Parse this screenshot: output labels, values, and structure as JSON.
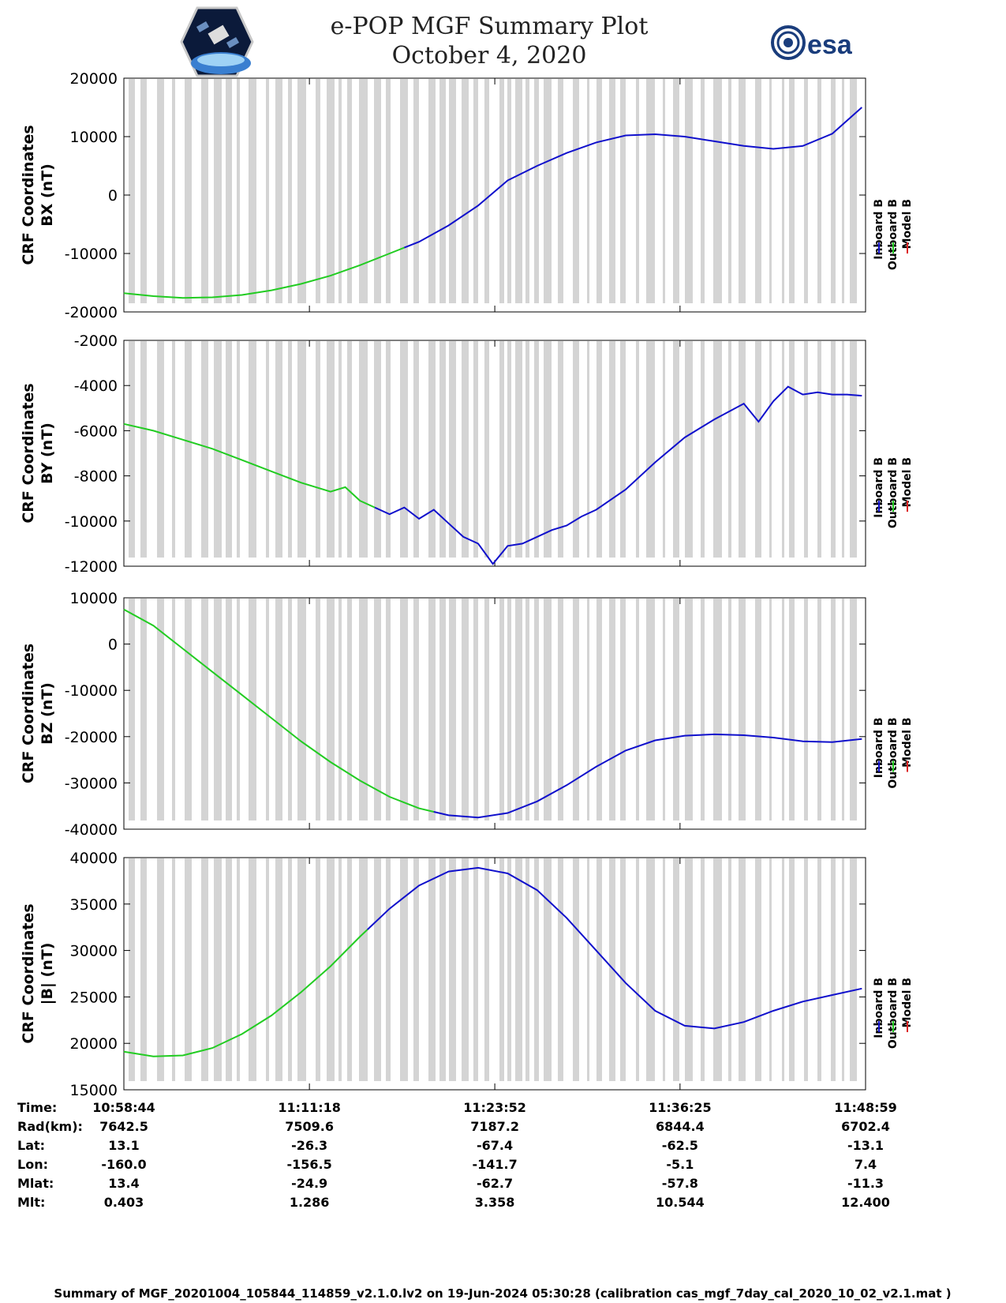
{
  "title": {
    "line1": "e-POP MGF Summary Plot",
    "line2": "October 4, 2020"
  },
  "logos": {
    "left": "cassiope-mission-logo",
    "right_text": "esa"
  },
  "colors": {
    "inboard": "#1010cc",
    "outboard": "#22cc22",
    "model": "#dd2222",
    "coverage": "#d4d4d4",
    "axis": "#000000"
  },
  "legend": [
    {
      "label": "Inboard B",
      "color": "#1010cc"
    },
    {
      "label": "Outboard B",
      "color": "#22cc22"
    },
    {
      "label": "Model B",
      "color": "#dd2222"
    }
  ],
  "chart_data": [
    {
      "type": "line",
      "ylabel_line1": "CRF Coordinates",
      "ylabel_line2": "BX (nT)",
      "ylim": [
        -20000,
        20000
      ],
      "yticks": [
        "20000",
        "10000",
        "0",
        "-10000",
        "-20000"
      ],
      "ytick_values": [
        20000,
        10000,
        0,
        -10000,
        -20000
      ],
      "x_minutes": [
        0,
        2,
        4,
        6,
        8,
        10,
        12,
        14,
        16,
        18,
        20,
        22,
        24,
        26,
        28,
        30,
        32,
        34,
        36,
        38,
        40,
        42,
        44,
        46,
        48,
        50
      ],
      "values": [
        -16800,
        -17300,
        -17600,
        -17500,
        -17100,
        -16300,
        -15200,
        -13800,
        -12000,
        -10000,
        -8000,
        -5200,
        -1800,
        2500,
        5000,
        7200,
        9000,
        10200,
        10400,
        10000,
        9200,
        8400,
        7900,
        8400,
        10500,
        15000
      ],
      "switch_minute": 19
    },
    {
      "type": "line",
      "ylabel_line1": "CRF Coordinates",
      "ylabel_line2": "BY (nT)",
      "ylim": [
        -12000,
        -2000
      ],
      "yticks": [
        "-2000",
        "-4000",
        "-6000",
        "-8000",
        "-10000",
        "-12000"
      ],
      "ytick_values": [
        -2000,
        -4000,
        -6000,
        -8000,
        -10000,
        -12000
      ],
      "x_minutes": [
        0,
        2,
        4,
        6,
        8,
        10,
        12,
        14,
        15,
        16,
        18,
        19,
        20,
        21,
        22,
        23,
        24,
        25,
        26,
        27,
        28,
        29,
        30,
        31,
        32,
        34,
        36,
        38,
        40,
        42,
        43,
        44,
        45,
        46,
        47,
        48,
        49,
        50
      ],
      "values": [
        -5700,
        -6000,
        -6400,
        -6800,
        -7300,
        -7800,
        -8300,
        -8700,
        -8500,
        -9100,
        -9700,
        -9400,
        -9900,
        -9500,
        -10100,
        -10700,
        -11000,
        -11900,
        -11100,
        -11000,
        -10700,
        -10400,
        -10200,
        -9800,
        -9500,
        -8600,
        -7400,
        -6300,
        -5500,
        -4800,
        -5600,
        -4700,
        -4050,
        -4400,
        -4300,
        -4400,
        -4400,
        -4450
      ],
      "switch_minute": 17
    },
    {
      "type": "line",
      "ylabel_line1": "CRF Coordinates",
      "ylabel_line2": "BZ (nT)",
      "ylim": [
        -40000,
        10000
      ],
      "yticks": [
        "10000",
        "0",
        "-10000",
        "-20000",
        "-30000",
        "-40000"
      ],
      "ytick_values": [
        10000,
        0,
        -10000,
        -20000,
        -30000,
        -40000
      ],
      "x_minutes": [
        0,
        2,
        4,
        6,
        8,
        10,
        12,
        14,
        16,
        18,
        20,
        22,
        24,
        26,
        28,
        30,
        32,
        34,
        36,
        38,
        40,
        42,
        44,
        46,
        48,
        50
      ],
      "values": [
        7500,
        4000,
        -1000,
        -6000,
        -11000,
        -16000,
        -21000,
        -25500,
        -29500,
        -33000,
        -35500,
        -37000,
        -37500,
        -36500,
        -34000,
        -30500,
        -26500,
        -23000,
        -20800,
        -19800,
        -19500,
        -19700,
        -20200,
        -21000,
        -21200,
        -20500
      ],
      "switch_minute": 21
    },
    {
      "type": "line",
      "ylabel_line1": "CRF Coordinates",
      "ylabel_line2": "|B| (nT)",
      "ylim": [
        15000,
        40000
      ],
      "yticks": [
        "40000",
        "35000",
        "30000",
        "25000",
        "20000",
        "15000"
      ],
      "ytick_values": [
        40000,
        35000,
        30000,
        25000,
        20000,
        15000
      ],
      "x_minutes": [
        0,
        2,
        4,
        6,
        8,
        10,
        12,
        14,
        16,
        18,
        20,
        22,
        24,
        26,
        28,
        30,
        32,
        34,
        36,
        38,
        40,
        42,
        44,
        46,
        48,
        50
      ],
      "values": [
        19100,
        18600,
        18700,
        19500,
        21000,
        23000,
        25500,
        28300,
        31500,
        34500,
        37000,
        38500,
        38900,
        38300,
        36500,
        33500,
        30000,
        26500,
        23500,
        21900,
        21600,
        22300,
        23500,
        24500,
        25200,
        25900
      ],
      "switch_minute": 16.5
    }
  ],
  "x_axis": {
    "start_minute": 0,
    "end_minute": 50.25,
    "tick_minutes": [
      0,
      12.57,
      25.13,
      37.68,
      50.25
    ]
  },
  "info_table": {
    "row_labels": [
      "Time:",
      "Rad(km):",
      "Lat:",
      "Lon:",
      "Mlat:",
      "Mlt:"
    ],
    "columns": [
      [
        "10:58:44",
        "7642.5",
        "13.1",
        "-160.0",
        "13.4",
        "0.403"
      ],
      [
        "11:11:18",
        "7509.6",
        "-26.3",
        "-156.5",
        "-24.9",
        "1.286"
      ],
      [
        "11:23:52",
        "7187.2",
        "-67.4",
        "-141.7",
        "-62.7",
        "3.358"
      ],
      [
        "11:36:25",
        "6844.4",
        "-62.5",
        "-5.1",
        "-57.8",
        "10.544"
      ],
      [
        "11:48:59",
        "6702.4",
        "-13.1",
        "7.4",
        "-11.3",
        "12.400"
      ]
    ]
  },
  "footer": "Summary of MGF_20201004_105844_114859_v2.1.0.lv2 on 19-Jun-2024 05:30:28 (calibration cas_mgf_7day_cal_2020_10_02_v2.1.mat )"
}
